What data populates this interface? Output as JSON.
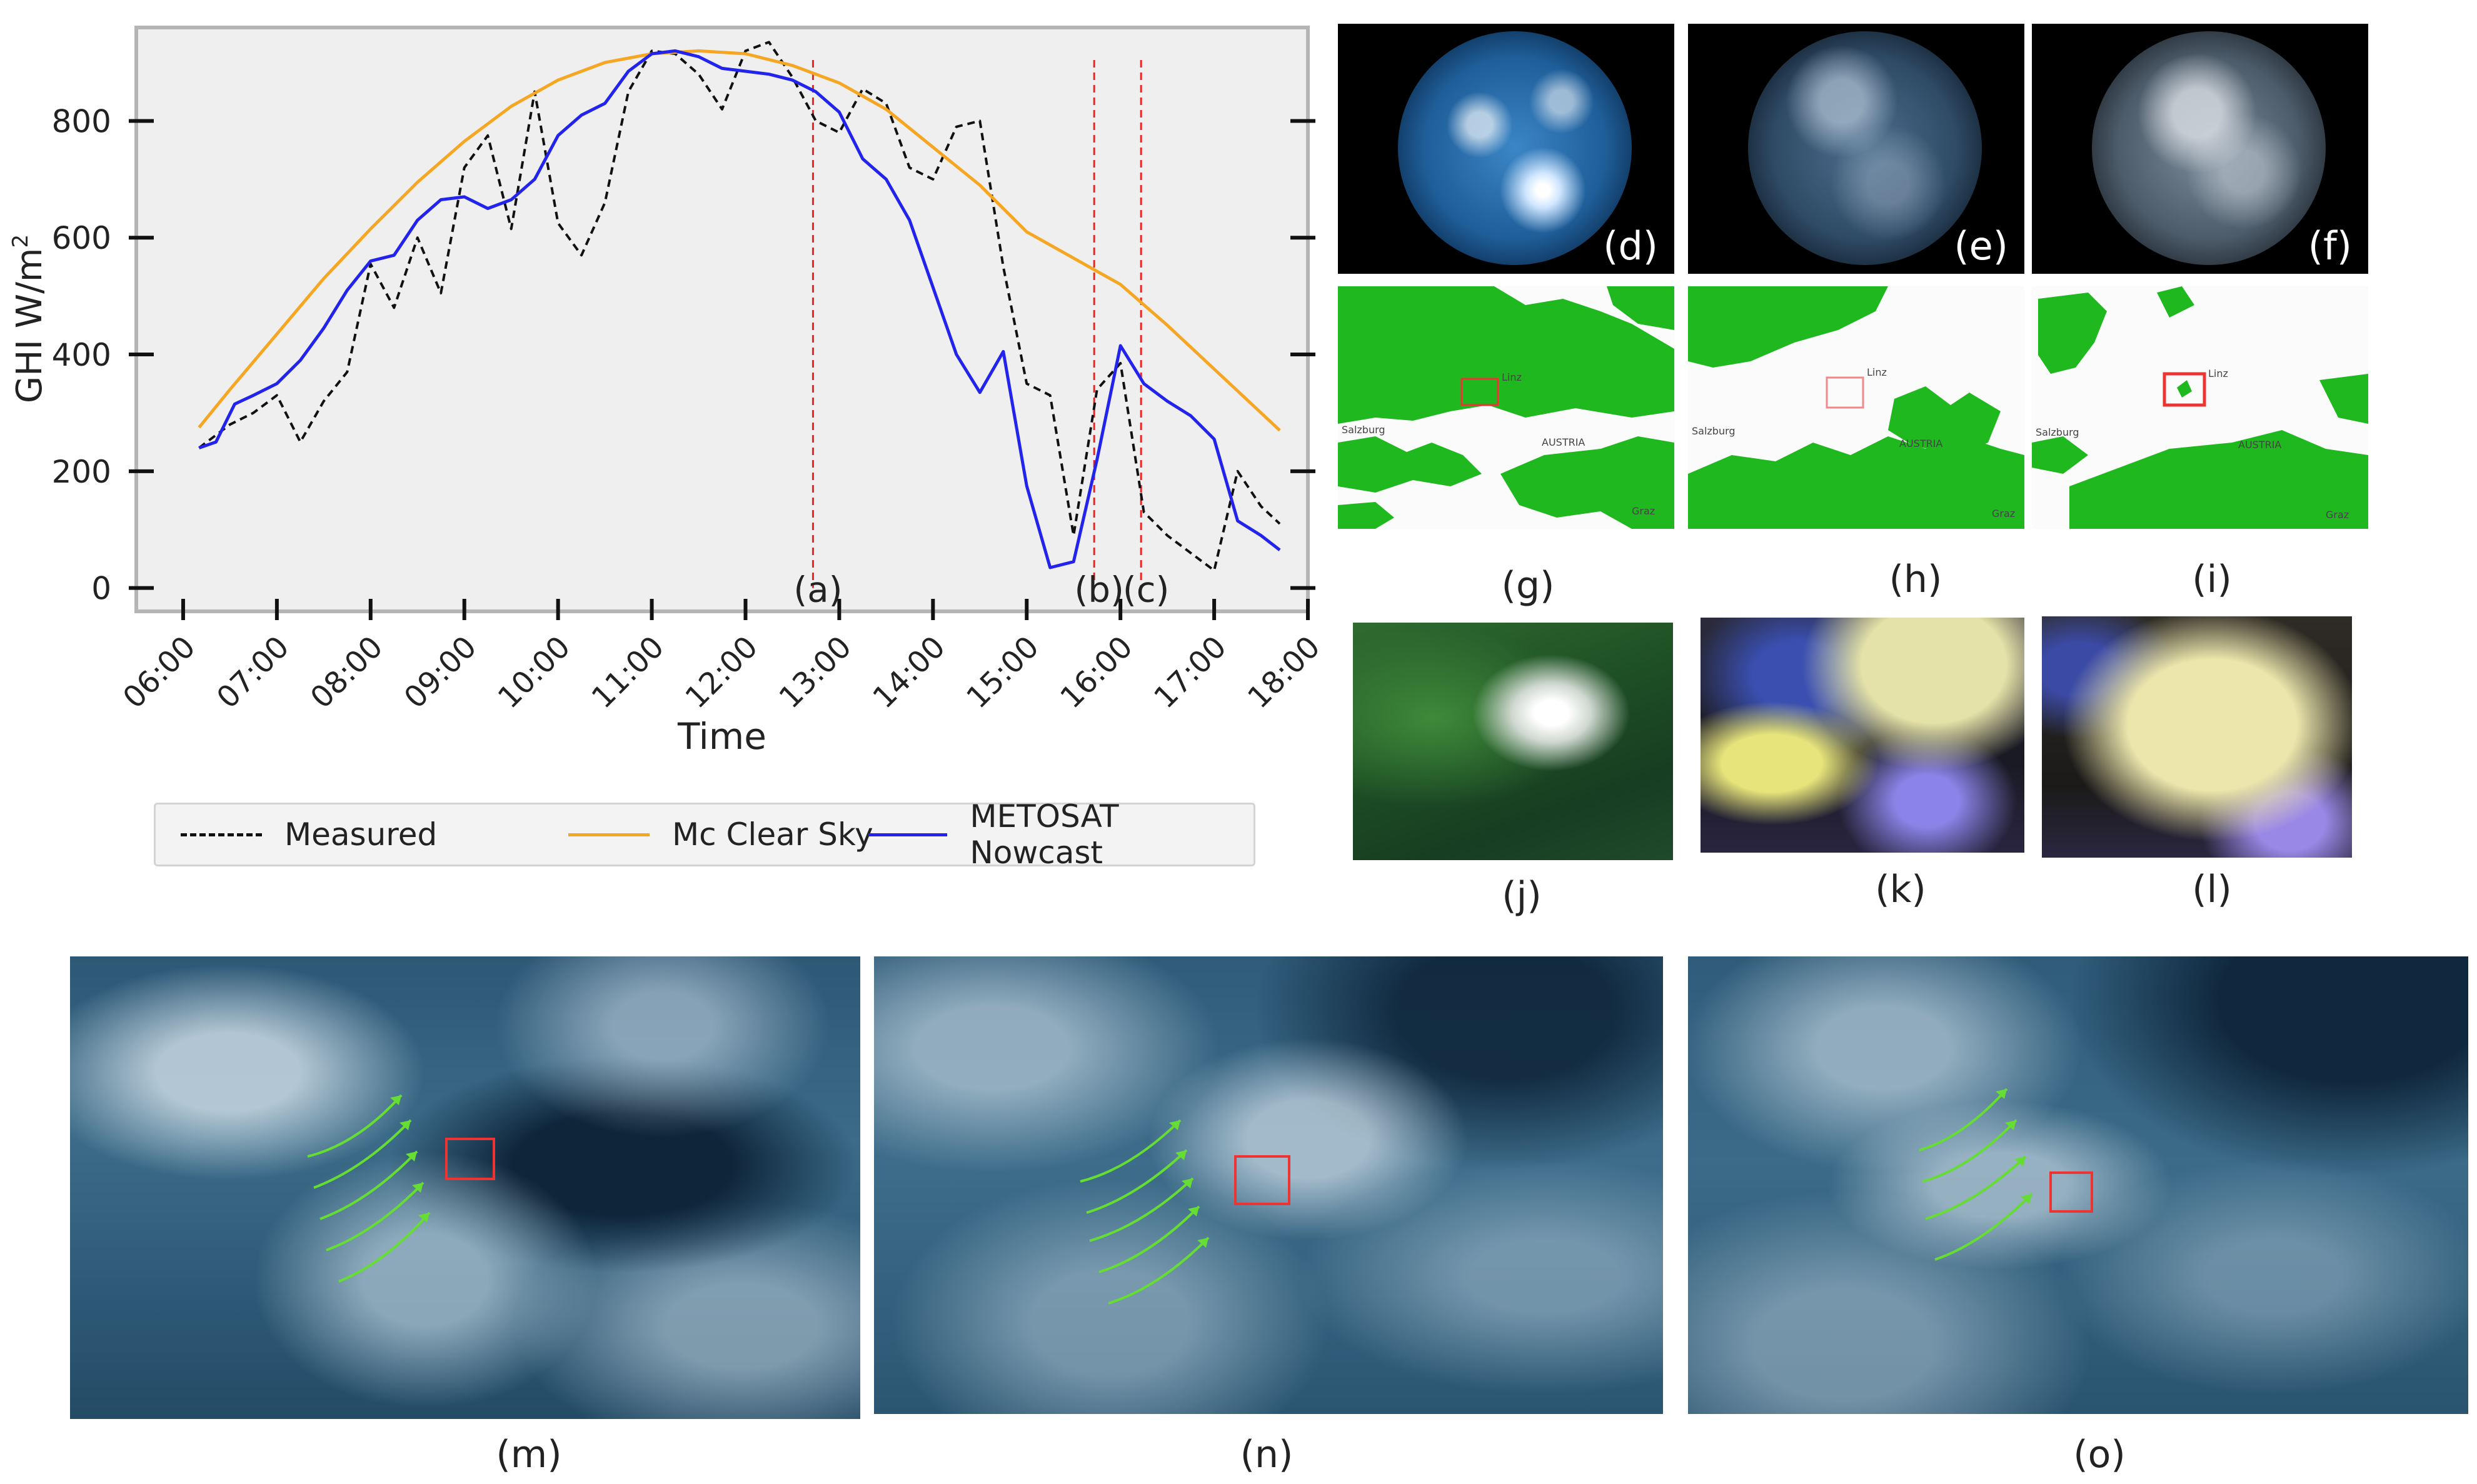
{
  "chart_data": {
    "type": "line",
    "title": "",
    "xlabel": "Time",
    "ylabel": "GHI W/m",
    "ylabel_sup": "2",
    "x_ticks": [
      "06:00",
      "07:00",
      "08:00",
      "09:00",
      "10:00",
      "11:00",
      "12:00",
      "13:00",
      "14:00",
      "15:00",
      "16:00",
      "17:00",
      "18:00"
    ],
    "y_ticks": [
      0,
      200,
      400,
      600,
      800
    ],
    "xlim_hours": [
      5.5,
      18.0
    ],
    "ylim": [
      -40,
      960
    ],
    "grid": false,
    "legend_position": "below",
    "series": [
      {
        "name": "Measured",
        "color": "#111111",
        "style": "dashed",
        "x": [
          6.17,
          6.5,
          6.75,
          7.0,
          7.25,
          7.5,
          7.75,
          8.0,
          8.25,
          8.5,
          8.75,
          9.0,
          9.25,
          9.5,
          9.75,
          10.0,
          10.25,
          10.5,
          10.75,
          11.0,
          11.25,
          11.5,
          11.75,
          12.0,
          12.25,
          12.5,
          12.75,
          13.0,
          13.25,
          13.5,
          13.75,
          14.0,
          14.25,
          14.5,
          14.75,
          15.0,
          15.25,
          15.5,
          15.75,
          16.0,
          16.25,
          16.5,
          16.75,
          17.0,
          17.25,
          17.5,
          17.7
        ],
        "values": [
          240,
          280,
          300,
          330,
          250,
          320,
          370,
          555,
          480,
          600,
          505,
          720,
          775,
          615,
          850,
          625,
          570,
          660,
          850,
          920,
          915,
          880,
          820,
          920,
          935,
          875,
          800,
          780,
          855,
          830,
          720,
          700,
          790,
          800,
          550,
          350,
          330,
          90,
          340,
          385,
          130,
          90,
          60,
          30,
          200,
          140,
          110
        ]
      },
      {
        "name": "Mc Clear Sky",
        "color": "#f5a623",
        "style": "solid",
        "x": [
          6.17,
          6.5,
          7.0,
          7.5,
          8.0,
          8.5,
          9.0,
          9.5,
          10.0,
          10.5,
          11.0,
          11.5,
          12.0,
          12.5,
          13.0,
          13.5,
          14.0,
          14.5,
          15.0,
          15.5,
          16.0,
          16.5,
          17.0,
          17.5,
          17.7
        ],
        "values": [
          275,
          340,
          435,
          530,
          615,
          695,
          765,
          825,
          870,
          900,
          915,
          920,
          915,
          895,
          865,
          820,
          755,
          690,
          610,
          565,
          520,
          450,
          375,
          300,
          270
        ]
      },
      {
        "name": "METOSAT Nowcast",
        "color": "#2323ee",
        "style": "solid",
        "x": [
          6.17,
          6.35,
          6.55,
          6.75,
          7.0,
          7.25,
          7.5,
          7.75,
          8.0,
          8.25,
          8.5,
          8.75,
          9.0,
          9.25,
          9.5,
          9.75,
          10.0,
          10.25,
          10.5,
          10.75,
          11.0,
          11.25,
          11.5,
          11.75,
          12.0,
          12.25,
          12.5,
          12.75,
          13.0,
          13.25,
          13.5,
          13.75,
          14.0,
          14.25,
          14.5,
          14.75,
          15.0,
          15.25,
          15.5,
          15.75,
          16.0,
          16.25,
          16.5,
          16.75,
          17.0,
          17.25,
          17.5,
          17.7
        ],
        "values": [
          240,
          250,
          315,
          330,
          350,
          390,
          445,
          510,
          560,
          570,
          630,
          665,
          670,
          650,
          665,
          700,
          775,
          810,
          830,
          885,
          915,
          920,
          910,
          890,
          885,
          880,
          870,
          850,
          815,
          735,
          700,
          630,
          515,
          400,
          335,
          405,
          175,
          35,
          45,
          220,
          415,
          350,
          320,
          295,
          255,
          115,
          90,
          65
        ]
      }
    ],
    "markers": [
      {
        "label": "(a)",
        "x": 12.72
      },
      {
        "label": "(b)",
        "x": 15.72
      },
      {
        "label": "(c)",
        "x": 16.22
      }
    ]
  },
  "panels": {
    "sky_images": [
      "(d)",
      "(e)",
      "(f)"
    ],
    "cloud_masks": [
      "(g)",
      "(h)",
      "(i)"
    ],
    "rgb_crops": [
      "(j)",
      "(k)",
      "(l)"
    ],
    "satellite": [
      "(m)",
      "(n)",
      "(o)"
    ]
  },
  "map_places": {
    "g": {
      "linz": "Linz",
      "salzburg": "Salzburg",
      "austria": "AUSTRIA",
      "graz": "Graz"
    },
    "h": {
      "linz": "Linz",
      "salzburg": "Salzburg",
      "austria": "AUSTRIA",
      "graz": "Graz"
    },
    "i": {
      "linz": "Linz",
      "salzburg": "Salzburg",
      "austria": "AUSTRIA",
      "graz": "Graz"
    }
  },
  "colors": {
    "plot_bg": "#efefef",
    "marker_line": "#ee2222",
    "cloud_mask": "#1fb81f",
    "box": "#e33333",
    "arrow": "#66dd33"
  }
}
